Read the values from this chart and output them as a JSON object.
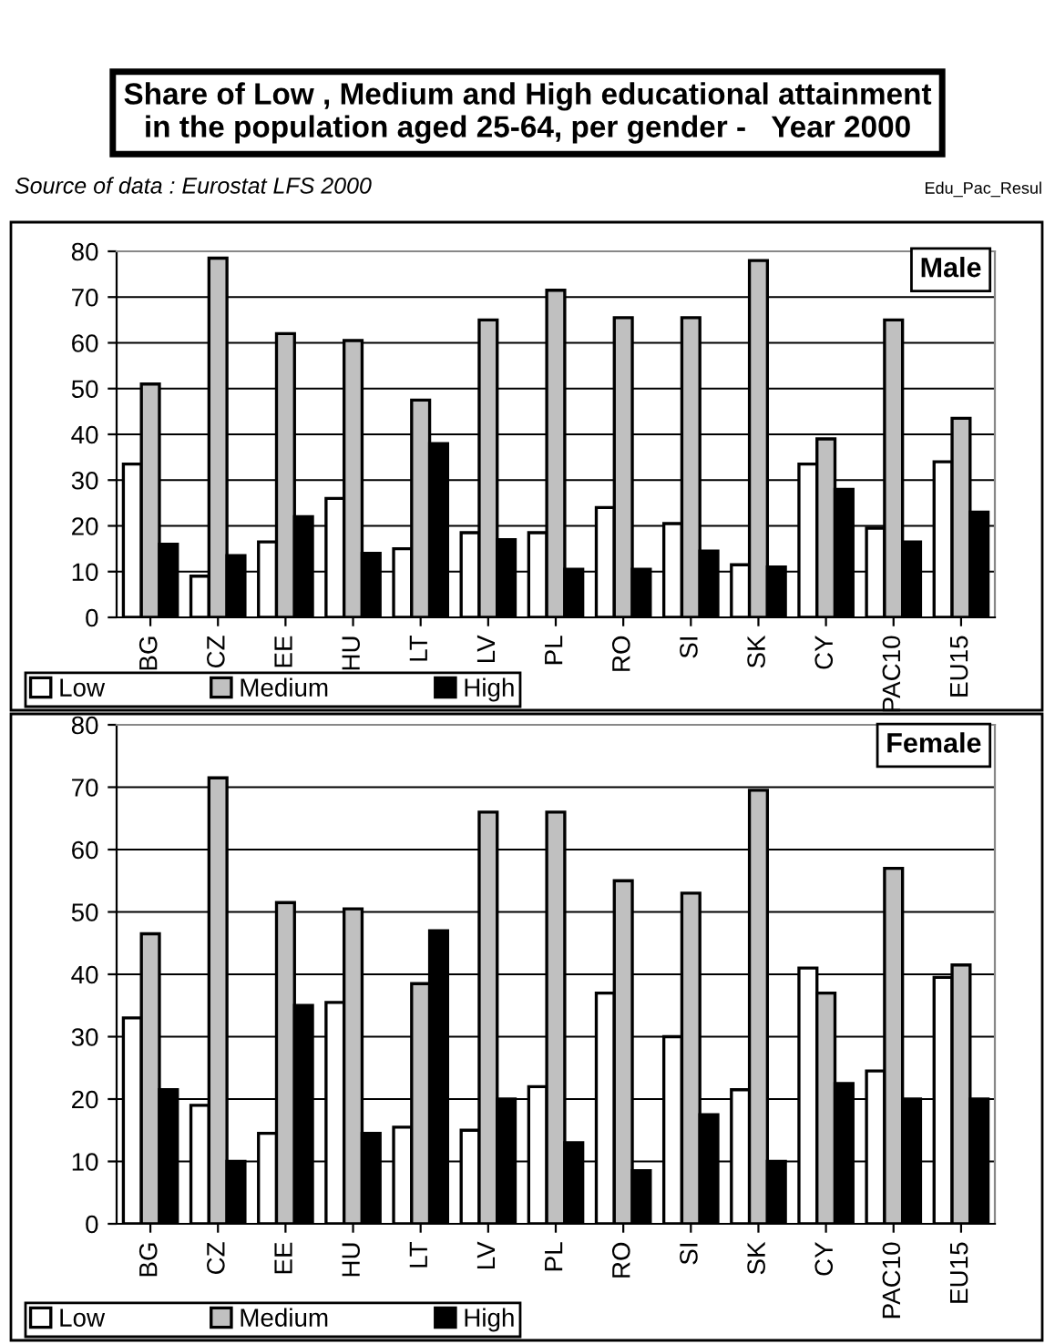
{
  "chart_data": [
    {
      "type": "bar",
      "title": "Male",
      "categories": [
        "BG",
        "CZ",
        "EE",
        "HU",
        "LT",
        "LV",
        "PL",
        "RO",
        "SI",
        "SK",
        "CY",
        "PAC10",
        "EU15"
      ],
      "series": [
        {
          "name": "Low",
          "color": "#ffffff",
          "values": [
            33.5,
            9,
            16.5,
            26,
            15,
            18.5,
            18.5,
            24,
            20.5,
            11.5,
            33.5,
            19.5,
            34
          ]
        },
        {
          "name": "Medium",
          "color": "#c0c0c0",
          "values": [
            51,
            78.5,
            62,
            60.5,
            47.5,
            65,
            71.5,
            65.5,
            65.5,
            78,
            39,
            65,
            43.5
          ]
        },
        {
          "name": "High",
          "color": "#000000",
          "values": [
            16,
            13.5,
            22,
            14,
            38,
            17,
            10.5,
            10.5,
            14.5,
            11,
            28,
            16.5,
            23
          ]
        }
      ],
      "ylim": [
        0,
        80
      ],
      "yticks": [
        0,
        10,
        20,
        30,
        40,
        50,
        60,
        70,
        80
      ],
      "grid": "y",
      "legend": "bottom left",
      "annotations": [
        "Share of Low , Medium and High educational attainment\nin the population aged 25-64, per gender -   Year 2000",
        "Source of data : Eurostat LFS 2000",
        "Edu_Pac_Resul"
      ]
    },
    {
      "type": "bar",
      "title": "Female",
      "categories": [
        "BG",
        "CZ",
        "EE",
        "HU",
        "LT",
        "LV",
        "PL",
        "RO",
        "SI",
        "SK",
        "CY",
        "PAC10",
        "EU15"
      ],
      "series": [
        {
          "name": "Low",
          "color": "#ffffff",
          "values": [
            33,
            19,
            14.5,
            35.5,
            15.5,
            15,
            22,
            37,
            30,
            21.5,
            41,
            24.5,
            39.5
          ]
        },
        {
          "name": "Medium",
          "color": "#c0c0c0",
          "values": [
            46.5,
            71.5,
            51.5,
            50.5,
            38.5,
            66,
            66,
            55,
            53,
            69.5,
            37,
            57,
            41.5
          ]
        },
        {
          "name": "High",
          "color": "#000000",
          "values": [
            21.5,
            10,
            35,
            14.5,
            47,
            20,
            13,
            8.5,
            17.5,
            10,
            22.5,
            20,
            20
          ]
        }
      ],
      "ylim": [
        0,
        80
      ],
      "yticks": [
        0,
        10,
        20,
        30,
        40,
        50,
        60,
        70,
        80
      ],
      "grid": "y",
      "legend": "bottom left"
    }
  ]
}
